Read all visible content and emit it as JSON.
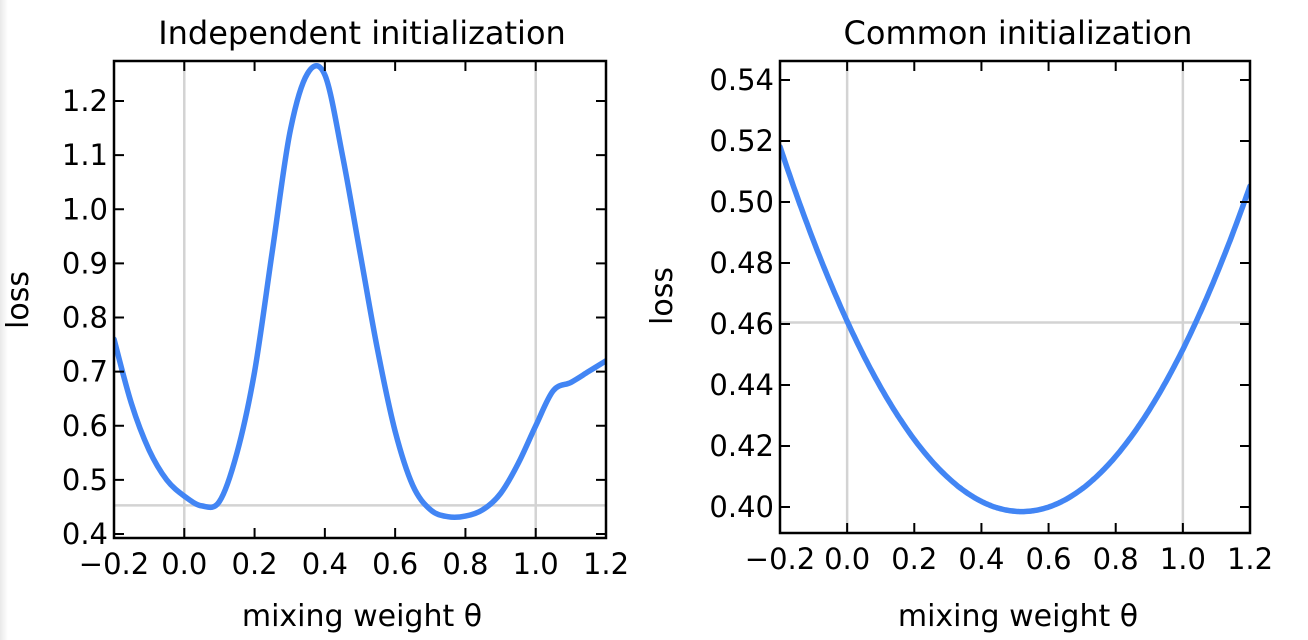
{
  "chart_data": [
    {
      "type": "line",
      "title": "Independent initialization",
      "xlabel": "mixing weight θ",
      "ylabel": "loss",
      "xlim": [
        -0.2,
        1.2
      ],
      "ylim": [
        0.4,
        1.27
      ],
      "xticks": [
        -0.2,
        0.0,
        0.2,
        0.4,
        0.6,
        0.8,
        1.0,
        1.2
      ],
      "xtick_labels": [
        "−0.2",
        "0.0",
        "0.2",
        "0.4",
        "0.6",
        "0.8",
        "1.0",
        "1.2"
      ],
      "yticks": [
        0.4,
        0.5,
        0.6,
        0.7,
        0.8,
        0.9,
        1.0,
        1.1,
        1.2
      ],
      "ytick_labels": [
        "0.4",
        "0.5",
        "0.6",
        "0.7",
        "0.8",
        "0.9",
        "1.0",
        "1.1",
        "1.2"
      ],
      "reference_lines": {
        "vertical": [
          0.0,
          1.0
        ],
        "horizontal": [
          0.453
        ]
      },
      "grid": false,
      "line_color": "#4285f4",
      "ref_color": "#d3d3d3",
      "series": [
        {
          "name": "loss",
          "x": [
            -0.2,
            -0.15,
            -0.1,
            -0.05,
            0.0,
            0.05,
            0.1,
            0.15,
            0.2,
            0.25,
            0.3,
            0.35,
            0.4,
            0.45,
            0.5,
            0.55,
            0.6,
            0.65,
            0.7,
            0.75,
            0.8,
            0.85,
            0.9,
            0.95,
            1.0,
            1.05,
            1.1,
            1.15,
            1.2
          ],
          "values": [
            0.76,
            0.64,
            0.555,
            0.5,
            0.47,
            0.452,
            0.46,
            0.55,
            0.7,
            0.92,
            1.14,
            1.25,
            1.248,
            1.1,
            0.92,
            0.74,
            0.59,
            0.49,
            0.445,
            0.432,
            0.433,
            0.445,
            0.475,
            0.53,
            0.6,
            0.665,
            0.68,
            0.7,
            0.72
          ]
        }
      ]
    },
    {
      "type": "line",
      "title": "Common initialization",
      "xlabel": "mixing weight θ",
      "ylabel": "loss",
      "xlim": [
        -0.2,
        1.2
      ],
      "ylim": [
        0.39,
        0.548
      ],
      "xticks": [
        -0.2,
        0.0,
        0.2,
        0.4,
        0.6,
        0.8,
        1.0,
        1.2
      ],
      "xtick_labels": [
        "−0.2",
        "0.0",
        "0.2",
        "0.4",
        "0.6",
        "0.8",
        "1.0",
        "1.2"
      ],
      "yticks": [
        0.4,
        0.42,
        0.44,
        0.46,
        0.48,
        0.5,
        0.52,
        0.54
      ],
      "ytick_labels": [
        "0.40",
        "0.42",
        "0.44",
        "0.46",
        "0.48",
        "0.50",
        "0.52",
        "0.54"
      ],
      "reference_lines": {
        "vertical": [
          0.0,
          1.0
        ],
        "horizontal": [
          0.4605
        ]
      },
      "grid": false,
      "line_color": "#4285f4",
      "ref_color": "#d3d3d3",
      "series": [
        {
          "name": "loss",
          "quadratic": {
            "vertex_x": 0.52,
            "vertex_y": 0.3985,
            "a": 0.2308
          }
        }
      ]
    }
  ]
}
